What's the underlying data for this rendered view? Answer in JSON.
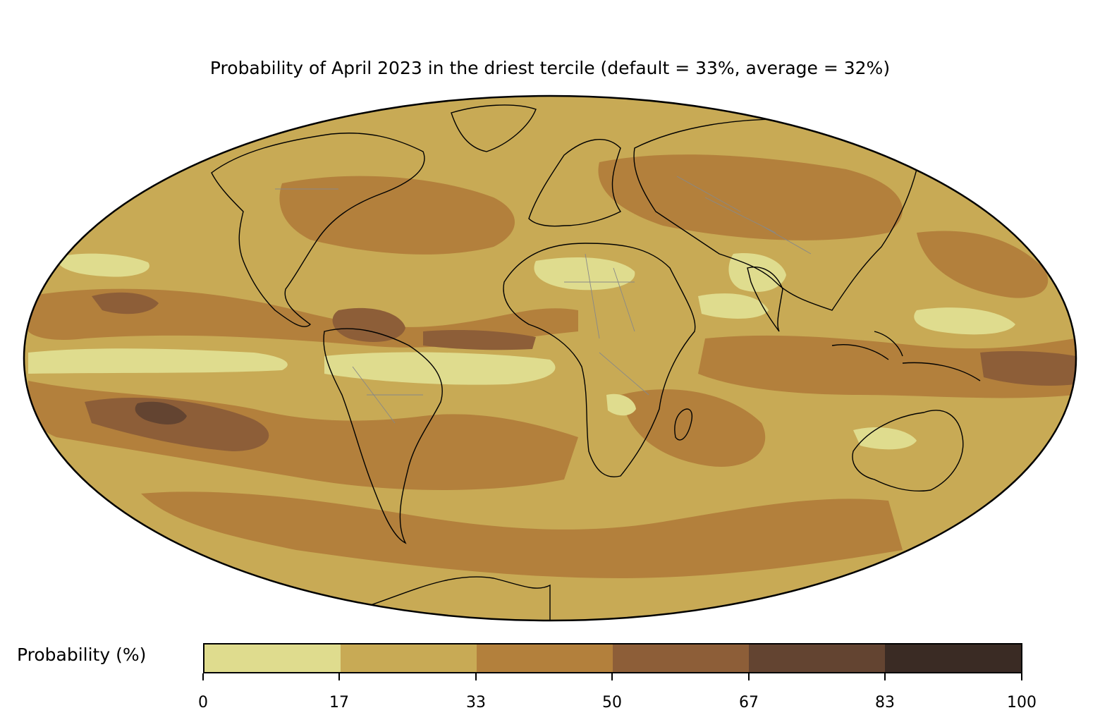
{
  "title": "Probability of April 2023 in the driest tercile (default = 33%, average = 32%)",
  "colorbar": {
    "label": "Probability (%)",
    "ticks": [
      "0",
      "17",
      "33",
      "50",
      "67",
      "83",
      "100"
    ],
    "bins": [
      {
        "range": "0-17",
        "color": "#dfdc8e"
      },
      {
        "range": "17-33",
        "color": "#c8aa55"
      },
      {
        "range": "33-50",
        "color": "#b3803c"
      },
      {
        "range": "50-67",
        "color": "#8d5e38"
      },
      {
        "range": "67-83",
        "color": "#634431"
      },
      {
        "range": "83-100",
        "color": "#3a2b24"
      }
    ]
  },
  "map": {
    "projection": "mollweide",
    "ocean_fill": "#c8aa55",
    "coastline_color": "#000000",
    "border_color": "#888888"
  }
}
